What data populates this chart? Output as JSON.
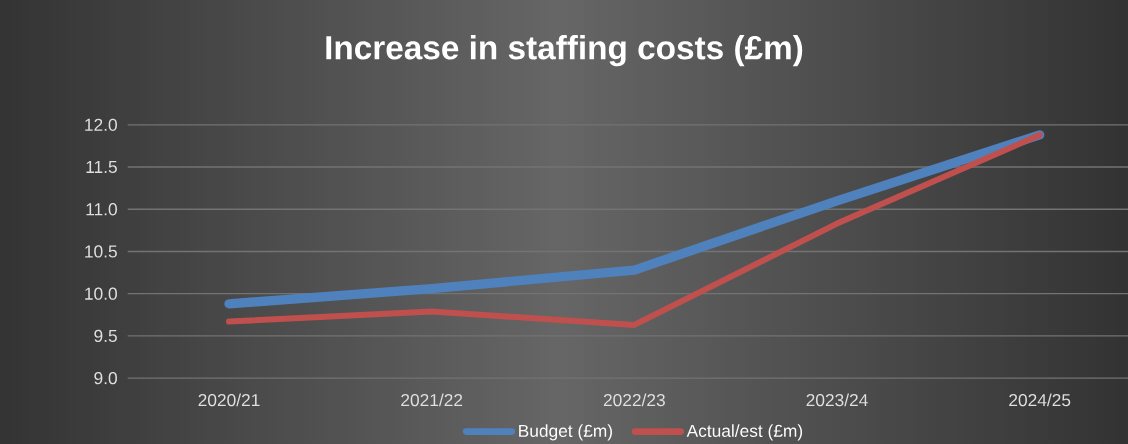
{
  "chart_data": {
    "type": "line",
    "title": "Increase in staffing costs (£m)",
    "categories": [
      "2020/21",
      "2021/22",
      "2022/23",
      "2023/24",
      "2024/25"
    ],
    "series": [
      {
        "name": "Budget (£m)",
        "color": "#4f81bd",
        "values": [
          9.88,
          10.06,
          10.28,
          11.1,
          11.88
        ]
      },
      {
        "name": "Actual/est (£m)",
        "color": "#c0504d",
        "values": [
          9.67,
          9.79,
          9.63,
          10.83,
          11.88
        ]
      }
    ],
    "ylim": [
      9.0,
      12.0
    ],
    "yticks": [
      {
        "value": 9.0,
        "label": "9.0"
      },
      {
        "value": 9.5,
        "label": "9.5"
      },
      {
        "value": 10.0,
        "label": "10.0"
      },
      {
        "value": 10.5,
        "label": "10.5"
      },
      {
        "value": 11.0,
        "label": "11.0"
      },
      {
        "value": 11.5,
        "label": "11.5"
      },
      {
        "value": 12.0,
        "label": "12.0"
      }
    ],
    "grid": "y",
    "legend": "bottom",
    "marker": "none",
    "line_style": "solid"
  }
}
